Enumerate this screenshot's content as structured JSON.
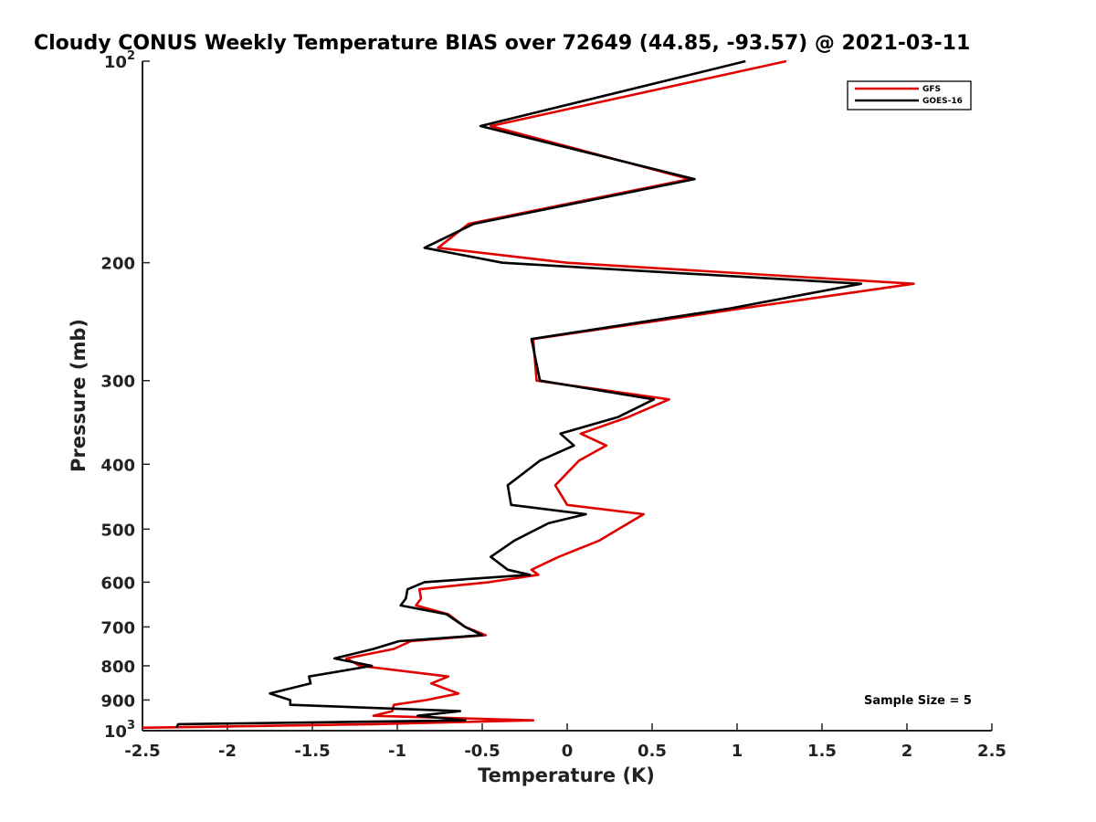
{
  "chart_data": {
    "type": "line",
    "title": "Cloudy CONUS Weekly Temperature BIAS over 72649 (44.85, -93.57) @ 2021-03-11",
    "xlabel": "Temperature (K)",
    "ylabel": "Pressure (mb)",
    "xlim": [
      -2.5,
      2.5
    ],
    "ylim": [
      100,
      1000
    ],
    "y_scale": "log",
    "y_reversed": true,
    "x_ticks": [
      -2.5,
      -2,
      -1.5,
      -1,
      -0.5,
      0,
      0.5,
      1,
      1.5,
      2,
      2.5
    ],
    "x_tick_labels": [
      "-2.5",
      "-2",
      "-1.5",
      "-1",
      "-0.5",
      "0",
      "0.5",
      "1",
      "1.5",
      "2",
      "2.5"
    ],
    "y_ticks": [
      100,
      200,
      300,
      400,
      500,
      600,
      700,
      800,
      900,
      1000
    ],
    "y_tick_labels": [
      {
        "base": "10",
        "exp": "2"
      },
      {
        "base": "200",
        "exp": ""
      },
      {
        "base": "300",
        "exp": ""
      },
      {
        "base": "400",
        "exp": ""
      },
      {
        "base": "500",
        "exp": ""
      },
      {
        "base": "600",
        "exp": ""
      },
      {
        "base": "700",
        "exp": ""
      },
      {
        "base": "800",
        "exp": ""
      },
      {
        "base": "900",
        "exp": ""
      },
      {
        "base": "10",
        "exp": "3"
      }
    ],
    "grid": false,
    "legend_position": "top-right",
    "annotation": "Sample Size = 5",
    "series": [
      {
        "name": "GFS",
        "color": "#e00000",
        "points": [
          [
            1.29,
            100
          ],
          [
            -0.45,
            125
          ],
          [
            0.72,
            150
          ],
          [
            -0.58,
            175
          ],
          [
            -0.76,
            190
          ],
          [
            0.0,
            200
          ],
          [
            2.04,
            215
          ],
          [
            1.03,
            234
          ],
          [
            -0.2,
            260
          ],
          [
            -0.18,
            300
          ],
          [
            0.6,
            320
          ],
          [
            0.36,
            340
          ],
          [
            0.08,
            360
          ],
          [
            0.23,
            375
          ],
          [
            0.07,
            395
          ],
          [
            -0.07,
            430
          ],
          [
            0.0,
            460
          ],
          [
            0.45,
            475
          ],
          [
            0.36,
            490
          ],
          [
            0.19,
            520
          ],
          [
            -0.05,
            550
          ],
          [
            -0.21,
            575
          ],
          [
            -0.17,
            585
          ],
          [
            -0.46,
            600
          ],
          [
            -0.87,
            615
          ],
          [
            -0.86,
            635
          ],
          [
            -0.89,
            650
          ],
          [
            -0.7,
            670
          ],
          [
            -0.6,
            700
          ],
          [
            -0.48,
            720
          ],
          [
            -0.92,
            735
          ],
          [
            -1.02,
            755
          ],
          [
            -1.3,
            780
          ],
          [
            -1.22,
            800
          ],
          [
            -0.7,
            830
          ],
          [
            -0.8,
            850
          ],
          [
            -0.64,
            880
          ],
          [
            -0.83,
            900
          ],
          [
            -1.02,
            915
          ],
          [
            -1.03,
            935
          ],
          [
            -1.14,
            950
          ],
          [
            -0.2,
            965
          ],
          [
            -1.15,
            978
          ],
          [
            -2.5,
            990
          ]
        ]
      },
      {
        "name": "GOES-16",
        "color": "#000000",
        "points": [
          [
            1.05,
            100
          ],
          [
            -0.51,
            125
          ],
          [
            0.75,
            150
          ],
          [
            -0.55,
            175
          ],
          [
            -0.84,
            190
          ],
          [
            -0.38,
            200
          ],
          [
            1.73,
            215
          ],
          [
            0.96,
            234
          ],
          [
            -0.21,
            260
          ],
          [
            -0.16,
            300
          ],
          [
            0.51,
            320
          ],
          [
            0.3,
            340
          ],
          [
            -0.04,
            360
          ],
          [
            0.04,
            375
          ],
          [
            -0.16,
            395
          ],
          [
            -0.35,
            430
          ],
          [
            -0.33,
            460
          ],
          [
            0.11,
            475
          ],
          [
            -0.11,
            490
          ],
          [
            -0.31,
            520
          ],
          [
            -0.45,
            550
          ],
          [
            -0.35,
            575
          ],
          [
            -0.22,
            585
          ],
          [
            -0.84,
            600
          ],
          [
            -0.94,
            615
          ],
          [
            -0.95,
            635
          ],
          [
            -0.98,
            650
          ],
          [
            -0.71,
            670
          ],
          [
            -0.6,
            700
          ],
          [
            -0.5,
            720
          ],
          [
            -0.99,
            735
          ],
          [
            -1.14,
            755
          ],
          [
            -1.37,
            780
          ],
          [
            -1.15,
            800
          ],
          [
            -1.52,
            830
          ],
          [
            -1.51,
            850
          ],
          [
            -1.75,
            880
          ],
          [
            -1.63,
            900
          ],
          [
            -1.63,
            915
          ],
          [
            -0.63,
            935
          ],
          [
            -0.88,
            950
          ],
          [
            -0.6,
            965
          ],
          [
            -2.29,
            978
          ],
          [
            -2.3,
            990
          ]
        ]
      }
    ]
  }
}
